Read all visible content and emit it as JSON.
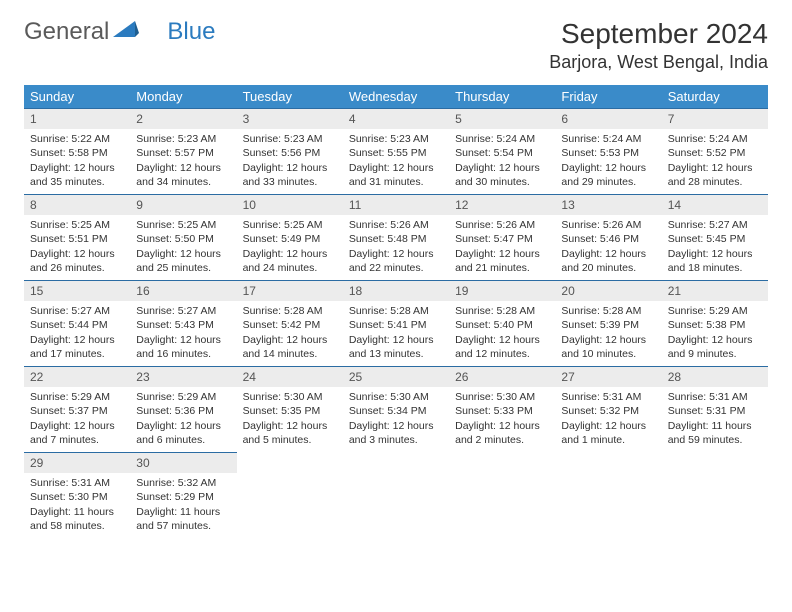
{
  "brand": {
    "part1": "General",
    "part2": "Blue"
  },
  "title": "September 2024",
  "location": "Barjora, West Bengal, India",
  "colors": {
    "header_bg": "#3a8bc9",
    "header_text": "#ffffff",
    "daynum_bg": "#ececec",
    "row_border": "#2b6ca3",
    "logo_gray": "#5a5a5a",
    "logo_blue": "#2b7bbf"
  },
  "weekdays": [
    "Sunday",
    "Monday",
    "Tuesday",
    "Wednesday",
    "Thursday",
    "Friday",
    "Saturday"
  ],
  "start_offset": 0,
  "days": [
    {
      "n": "1",
      "sunrise": "Sunrise: 5:22 AM",
      "sunset": "Sunset: 5:58 PM",
      "daylight": "Daylight: 12 hours and 35 minutes."
    },
    {
      "n": "2",
      "sunrise": "Sunrise: 5:23 AM",
      "sunset": "Sunset: 5:57 PM",
      "daylight": "Daylight: 12 hours and 34 minutes."
    },
    {
      "n": "3",
      "sunrise": "Sunrise: 5:23 AM",
      "sunset": "Sunset: 5:56 PM",
      "daylight": "Daylight: 12 hours and 33 minutes."
    },
    {
      "n": "4",
      "sunrise": "Sunrise: 5:23 AM",
      "sunset": "Sunset: 5:55 PM",
      "daylight": "Daylight: 12 hours and 31 minutes."
    },
    {
      "n": "5",
      "sunrise": "Sunrise: 5:24 AM",
      "sunset": "Sunset: 5:54 PM",
      "daylight": "Daylight: 12 hours and 30 minutes."
    },
    {
      "n": "6",
      "sunrise": "Sunrise: 5:24 AM",
      "sunset": "Sunset: 5:53 PM",
      "daylight": "Daylight: 12 hours and 29 minutes."
    },
    {
      "n": "7",
      "sunrise": "Sunrise: 5:24 AM",
      "sunset": "Sunset: 5:52 PM",
      "daylight": "Daylight: 12 hours and 28 minutes."
    },
    {
      "n": "8",
      "sunrise": "Sunrise: 5:25 AM",
      "sunset": "Sunset: 5:51 PM",
      "daylight": "Daylight: 12 hours and 26 minutes."
    },
    {
      "n": "9",
      "sunrise": "Sunrise: 5:25 AM",
      "sunset": "Sunset: 5:50 PM",
      "daylight": "Daylight: 12 hours and 25 minutes."
    },
    {
      "n": "10",
      "sunrise": "Sunrise: 5:25 AM",
      "sunset": "Sunset: 5:49 PM",
      "daylight": "Daylight: 12 hours and 24 minutes."
    },
    {
      "n": "11",
      "sunrise": "Sunrise: 5:26 AM",
      "sunset": "Sunset: 5:48 PM",
      "daylight": "Daylight: 12 hours and 22 minutes."
    },
    {
      "n": "12",
      "sunrise": "Sunrise: 5:26 AM",
      "sunset": "Sunset: 5:47 PM",
      "daylight": "Daylight: 12 hours and 21 minutes."
    },
    {
      "n": "13",
      "sunrise": "Sunrise: 5:26 AM",
      "sunset": "Sunset: 5:46 PM",
      "daylight": "Daylight: 12 hours and 20 minutes."
    },
    {
      "n": "14",
      "sunrise": "Sunrise: 5:27 AM",
      "sunset": "Sunset: 5:45 PM",
      "daylight": "Daylight: 12 hours and 18 minutes."
    },
    {
      "n": "15",
      "sunrise": "Sunrise: 5:27 AM",
      "sunset": "Sunset: 5:44 PM",
      "daylight": "Daylight: 12 hours and 17 minutes."
    },
    {
      "n": "16",
      "sunrise": "Sunrise: 5:27 AM",
      "sunset": "Sunset: 5:43 PM",
      "daylight": "Daylight: 12 hours and 16 minutes."
    },
    {
      "n": "17",
      "sunrise": "Sunrise: 5:28 AM",
      "sunset": "Sunset: 5:42 PM",
      "daylight": "Daylight: 12 hours and 14 minutes."
    },
    {
      "n": "18",
      "sunrise": "Sunrise: 5:28 AM",
      "sunset": "Sunset: 5:41 PM",
      "daylight": "Daylight: 12 hours and 13 minutes."
    },
    {
      "n": "19",
      "sunrise": "Sunrise: 5:28 AM",
      "sunset": "Sunset: 5:40 PM",
      "daylight": "Daylight: 12 hours and 12 minutes."
    },
    {
      "n": "20",
      "sunrise": "Sunrise: 5:28 AM",
      "sunset": "Sunset: 5:39 PM",
      "daylight": "Daylight: 12 hours and 10 minutes."
    },
    {
      "n": "21",
      "sunrise": "Sunrise: 5:29 AM",
      "sunset": "Sunset: 5:38 PM",
      "daylight": "Daylight: 12 hours and 9 minutes."
    },
    {
      "n": "22",
      "sunrise": "Sunrise: 5:29 AM",
      "sunset": "Sunset: 5:37 PM",
      "daylight": "Daylight: 12 hours and 7 minutes."
    },
    {
      "n": "23",
      "sunrise": "Sunrise: 5:29 AM",
      "sunset": "Sunset: 5:36 PM",
      "daylight": "Daylight: 12 hours and 6 minutes."
    },
    {
      "n": "24",
      "sunrise": "Sunrise: 5:30 AM",
      "sunset": "Sunset: 5:35 PM",
      "daylight": "Daylight: 12 hours and 5 minutes."
    },
    {
      "n": "25",
      "sunrise": "Sunrise: 5:30 AM",
      "sunset": "Sunset: 5:34 PM",
      "daylight": "Daylight: 12 hours and 3 minutes."
    },
    {
      "n": "26",
      "sunrise": "Sunrise: 5:30 AM",
      "sunset": "Sunset: 5:33 PM",
      "daylight": "Daylight: 12 hours and 2 minutes."
    },
    {
      "n": "27",
      "sunrise": "Sunrise: 5:31 AM",
      "sunset": "Sunset: 5:32 PM",
      "daylight": "Daylight: 12 hours and 1 minute."
    },
    {
      "n": "28",
      "sunrise": "Sunrise: 5:31 AM",
      "sunset": "Sunset: 5:31 PM",
      "daylight": "Daylight: 11 hours and 59 minutes."
    },
    {
      "n": "29",
      "sunrise": "Sunrise: 5:31 AM",
      "sunset": "Sunset: 5:30 PM",
      "daylight": "Daylight: 11 hours and 58 minutes."
    },
    {
      "n": "30",
      "sunrise": "Sunrise: 5:32 AM",
      "sunset": "Sunset: 5:29 PM",
      "daylight": "Daylight: 11 hours and 57 minutes."
    }
  ]
}
